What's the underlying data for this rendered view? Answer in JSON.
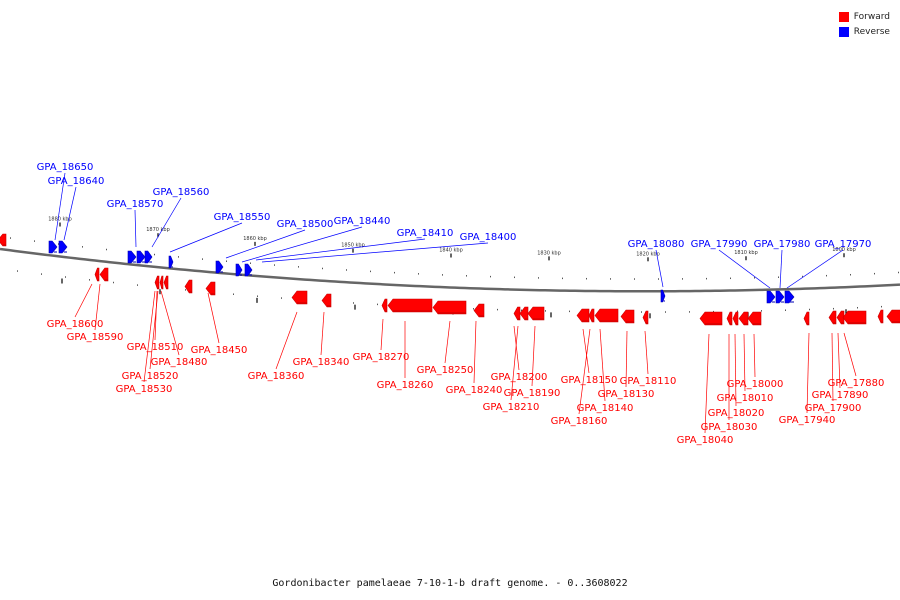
{
  "legend": [
    {
      "label": "Forward",
      "color": "#ff0000"
    },
    {
      "label": "Reverse",
      "color": "#0000ff"
    }
  ],
  "caption": "Gordonibacter pamelaeae 7-10-1-b draft genome. - 0..3608022",
  "colors": {
    "forward": "#ff0000",
    "reverse": "#0000ff",
    "backbone": "#666666"
  },
  "scale_ticks": [
    "1880 kbp",
    "1870 kbp",
    "1860 kbp",
    "1850 kbp",
    "1840 kbp",
    "1830 kbp",
    "1820 kbp",
    "1810 kbp",
    "1800 kbp"
  ],
  "reverse_genes": [
    "GPA_18650",
    "GPA_18640",
    "GPA_18570",
    "GPA_18560",
    "GPA_18550",
    "GPA_18500",
    "GPA_18440",
    "GPA_18410",
    "GPA_18400",
    "GPA_18080",
    "GPA_17990",
    "GPA_17980",
    "GPA_17970"
  ],
  "forward_genes": [
    "GPA_18600",
    "GPA_18590",
    "GPA_18510",
    "GPA_18480",
    "GPA_18520",
    "GPA_18530",
    "GPA_18450",
    "GPA_18360",
    "GPA_18340",
    "GPA_18270",
    "GPA_18260",
    "GPA_18250",
    "GPA_18240",
    "GPA_18200",
    "GPA_18210",
    "GPA_18190",
    "GPA_18150",
    "GPA_18160",
    "GPA_18140",
    "GPA_18130",
    "GPA_18110",
    "GPA_18040",
    "GPA_18030",
    "GPA_18020",
    "GPA_18010",
    "GPA_18000",
    "GPA_17940",
    "GPA_17900",
    "GPA_17890",
    "GPA_17880"
  ]
}
